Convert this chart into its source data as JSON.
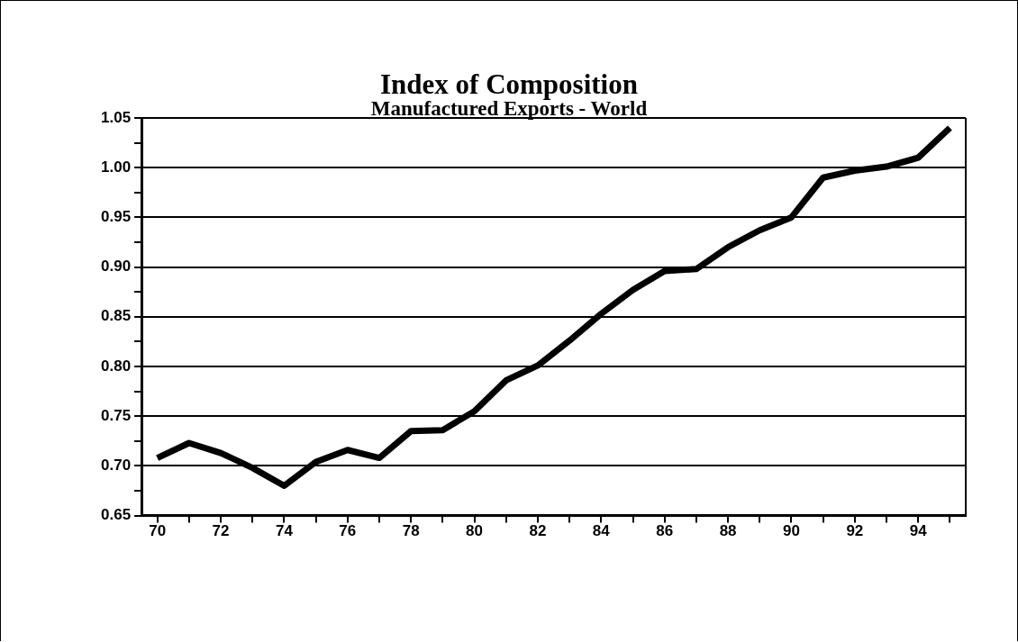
{
  "chart_data": {
    "type": "line",
    "title": "Index of Composition",
    "subtitle": "Manufactured Exports - World",
    "categories": [
      "70",
      null,
      "72",
      null,
      "74",
      null,
      "76",
      null,
      "78",
      null,
      "80",
      null,
      "82",
      null,
      "84",
      null,
      "86",
      null,
      "88",
      null,
      "90",
      null,
      "92",
      null,
      "94",
      null
    ],
    "series": [
      {
        "color": "#000000",
        "values": [
          0.708,
          0.723,
          0.713,
          0.698,
          0.68,
          0.704,
          0.716,
          0.708,
          0.735,
          0.736,
          0.755,
          0.786,
          0.801,
          0.826,
          0.853,
          0.877,
          0.896,
          0.898,
          0.92,
          0.937,
          0.95,
          0.99,
          0.997,
          1.001,
          1.01,
          1.04
        ]
      }
    ],
    "ylim": [
      0.65,
      1.05
    ],
    "yticks": [
      {
        "value": 0.65,
        "label": "0.65"
      },
      {
        "value": 0.675,
        "label": null
      },
      {
        "value": 0.7,
        "label": "0.70"
      },
      {
        "value": 0.725,
        "label": null
      },
      {
        "value": 0.75,
        "label": "0.75"
      },
      {
        "value": 0.775,
        "label": null
      },
      {
        "value": 0.8,
        "label": "0.80"
      },
      {
        "value": 0.825,
        "label": null
      },
      {
        "value": 0.85,
        "label": "0.85"
      },
      {
        "value": 0.875,
        "label": null
      },
      {
        "value": 0.9,
        "label": "0.90"
      },
      {
        "value": 0.925,
        "label": null
      },
      {
        "value": 0.95,
        "label": "0.95"
      },
      {
        "value": 0.975,
        "label": null
      },
      {
        "value": 1.0,
        "label": "1.00"
      },
      {
        "value": 1.025,
        "label": null
      },
      {
        "value": 1.05,
        "label": "1.05"
      }
    ],
    "grid": "y",
    "legend": false,
    "marker": "none",
    "line_style": "solid"
  }
}
